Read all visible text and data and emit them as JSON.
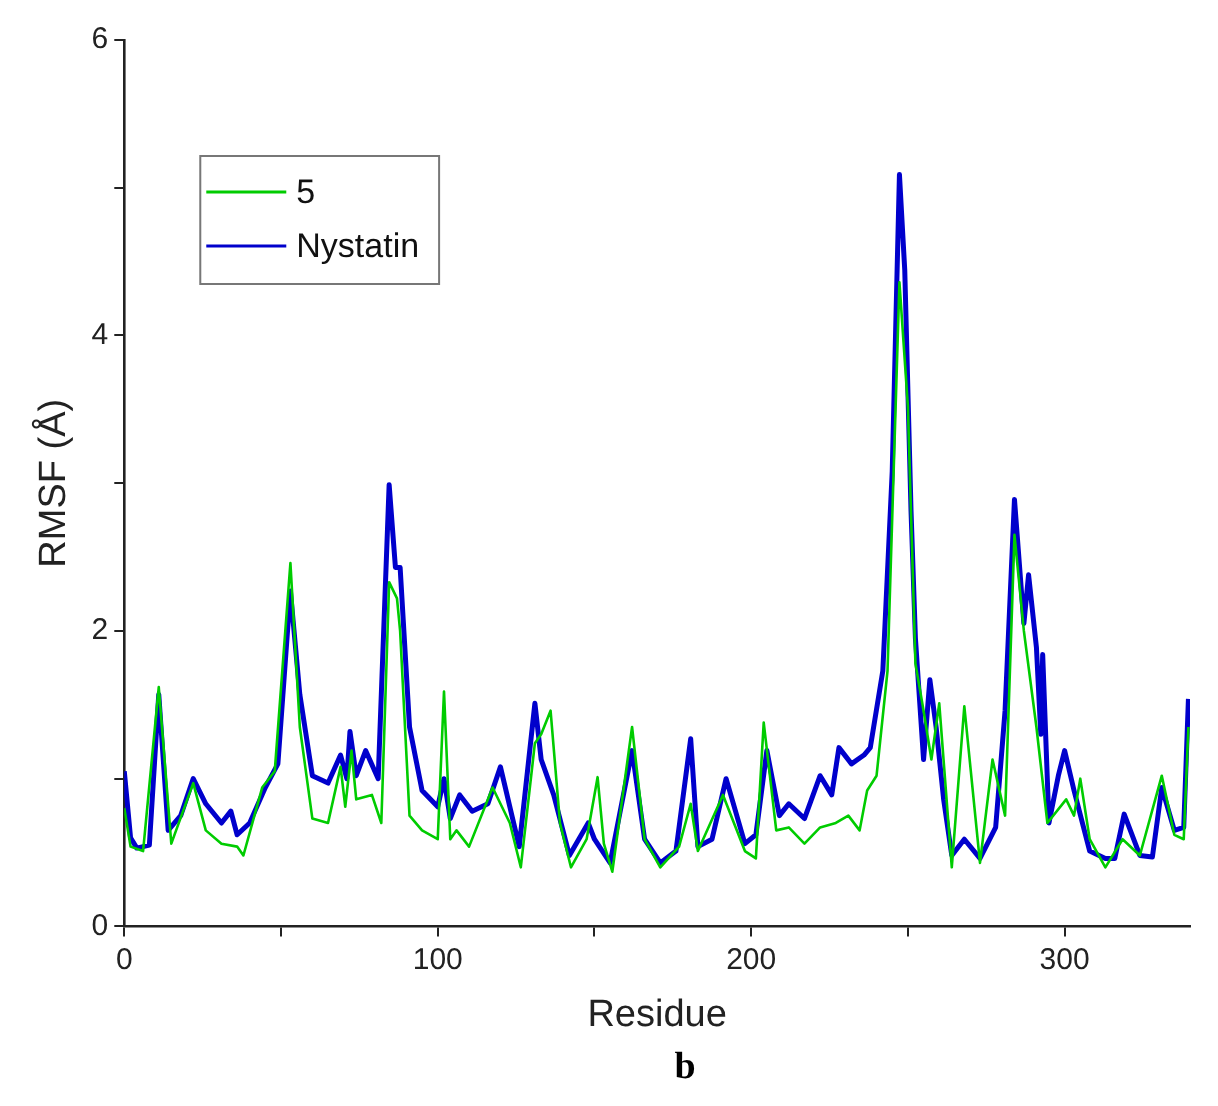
{
  "chart_data": {
    "type": "line",
    "xlabel": "Residue",
    "ylabel": "RMSF (Å)",
    "annotations": [
      "b"
    ],
    "xlim": [
      0,
      340
    ],
    "ylim": [
      0,
      6
    ],
    "xticks": [
      0,
      {
        "value": 50,
        "label": null
      },
      100,
      {
        "value": 150,
        "label": null
      },
      200,
      {
        "value": 250,
        "label": null
      },
      300
    ],
    "yticks": [
      0,
      {
        "value": 1,
        "label": null
      },
      2,
      {
        "value": 3,
        "label": null
      },
      4,
      {
        "value": 5,
        "label": null
      },
      6
    ],
    "grid": false,
    "legend": "top left",
    "marker": "none",
    "line_style": "solid",
    "series": [
      {
        "name": "5",
        "color": "#00cc00",
        "x": [
          0,
          2,
          6,
          11,
          15,
          22,
          26,
          31,
          36,
          38,
          44,
          48,
          53,
          56,
          60,
          65,
          69,
          70.5,
          72.5,
          74,
          79,
          82,
          84.5,
          87,
          88,
          91,
          95,
          100,
          102,
          104,
          106,
          110,
          117.5,
          123,
          126.5,
          131,
          133,
          136,
          139,
          142.5,
          147.5,
          151,
          153,
          155.7,
          162,
          166,
          171,
          177,
          180.7,
          183,
          191,
          198,
          201.5,
          204,
          208,
          212,
          217,
          222,
          227,
          231,
          234.6,
          237,
          240,
          243.5,
          247.3,
          250,
          252.4,
          255,
          257.5,
          260,
          264,
          268,
          273,
          277,
          281,
          284,
          287,
          291,
          294.5,
          300.5,
          303,
          305,
          308,
          313,
          318.5,
          324,
          331,
          335,
          338,
          339.5
        ],
        "values": [
          0.8,
          0.54,
          0.51,
          1.62,
          0.56,
          0.97,
          0.65,
          0.56,
          0.54,
          0.48,
          0.94,
          1.05,
          2.46,
          1.35,
          0.73,
          0.7,
          1.08,
          0.81,
          1.19,
          0.86,
          0.89,
          0.7,
          2.33,
          2.22,
          2.0,
          0.75,
          0.65,
          0.59,
          1.59,
          0.59,
          0.65,
          0.54,
          0.94,
          0.7,
          0.4,
          1.24,
          1.3,
          1.46,
          0.7,
          0.4,
          0.59,
          1.01,
          0.56,
          0.37,
          1.35,
          0.59,
          0.4,
          0.54,
          0.83,
          0.51,
          0.89,
          0.51,
          0.46,
          1.38,
          0.65,
          0.67,
          0.56,
          0.67,
          0.7,
          0.75,
          0.65,
          0.92,
          1.02,
          1.73,
          4.36,
          3.52,
          1.78,
          1.46,
          1.13,
          1.51,
          0.4,
          1.49,
          0.43,
          1.13,
          0.75,
          2.65,
          2.0,
          1.35,
          0.7,
          0.86,
          0.75,
          1.0,
          0.59,
          0.4,
          0.59,
          0.48,
          1.02,
          0.62,
          0.59,
          1.35
        ]
      },
      {
        "name": "Nystatin",
        "color": "#0000cc",
        "x": [
          0,
          2,
          4,
          8,
          11,
          14,
          18,
          22,
          26,
          31,
          34,
          36,
          40,
          45,
          49,
          53,
          56,
          60,
          65,
          69,
          71,
          72,
          74,
          77,
          81,
          84.5,
          86.5,
          88,
          91,
          95,
          100,
          102,
          104,
          107,
          111,
          116,
          120,
          123,
          126,
          131,
          133,
          137,
          142,
          148,
          150,
          155,
          162,
          166,
          171,
          176,
          180.7,
          183,
          187.5,
          192,
          198,
          201.5,
          205,
          209,
          212,
          217,
          222,
          225.7,
          228,
          232,
          236,
          238,
          242,
          245,
          247.3,
          249,
          251,
          252.4,
          255,
          257,
          259,
          261.4,
          264,
          268,
          273,
          278,
          281,
          284,
          287,
          288.5,
          291,
          292.4,
          293,
          295,
          298,
          300,
          303,
          308,
          313,
          316,
          319,
          324,
          328,
          331,
          335,
          338,
          339.5
        ],
        "values": [
          1.05,
          0.6,
          0.53,
          0.55,
          1.57,
          0.65,
          0.75,
          1.0,
          0.83,
          0.7,
          0.78,
          0.62,
          0.7,
          0.94,
          1.1,
          2.27,
          1.57,
          1.02,
          0.97,
          1.16,
          1.0,
          1.32,
          1.02,
          1.19,
          1.0,
          2.99,
          2.43,
          2.43,
          1.35,
          0.92,
          0.81,
          1.0,
          0.73,
          0.89,
          0.78,
          0.83,
          1.08,
          0.81,
          0.54,
          1.51,
          1.13,
          0.89,
          0.48,
          0.7,
          0.59,
          0.43,
          1.19,
          0.59,
          0.43,
          0.51,
          1.27,
          0.54,
          0.59,
          1.0,
          0.56,
          0.62,
          1.19,
          0.75,
          0.83,
          0.73,
          1.02,
          0.89,
          1.21,
          1.1,
          1.16,
          1.21,
          1.73,
          3.08,
          5.09,
          4.44,
          2.81,
          1.95,
          1.13,
          1.67,
          1.35,
          0.86,
          0.48,
          0.59,
          0.46,
          0.67,
          1.46,
          2.89,
          2.05,
          2.38,
          1.89,
          1.3,
          1.84,
          0.7,
          1.02,
          1.19,
          0.92,
          0.51,
          0.46,
          0.46,
          0.76,
          0.48,
          0.47,
          0.94,
          0.65,
          0.67,
          1.54
        ]
      }
    ]
  }
}
